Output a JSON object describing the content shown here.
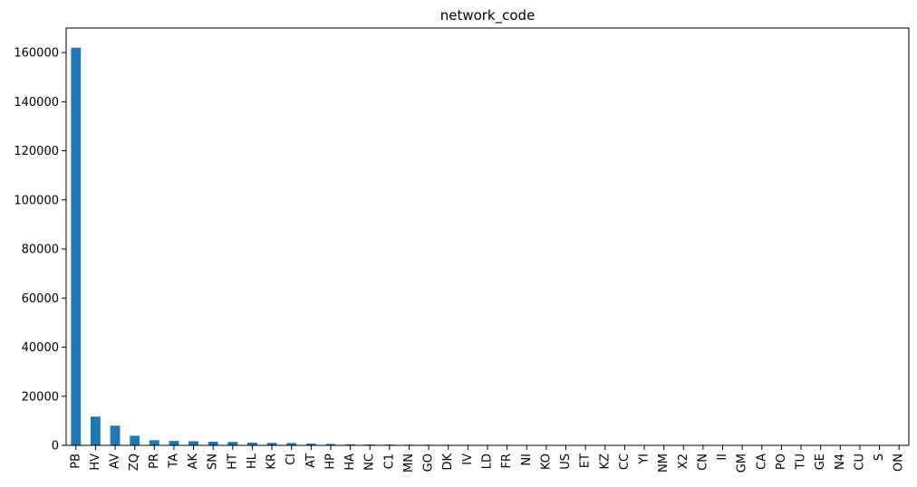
{
  "chart_data": {
    "type": "bar",
    "title": "network_code",
    "xlabel": "",
    "ylabel": "",
    "categories": [
      "PB",
      "HV",
      "AV",
      "ZQ",
      "PR",
      "TA",
      "AK",
      "SN",
      "HT",
      "HL",
      "KR",
      "CI",
      "AT",
      "HP",
      "HA",
      "NC",
      "C1",
      "MN",
      "GO",
      "DK",
      "IV",
      "LD",
      "FR",
      "NI",
      "KO",
      "US",
      "ET",
      "KZ",
      "CC",
      "YI",
      "NM",
      "X2",
      "CN",
      "II",
      "GM",
      "CA",
      "PO",
      "TU",
      "GE",
      "N4",
      "CU",
      "S",
      "ON"
    ],
    "values": [
      162000,
      11700,
      8000,
      3900,
      2100,
      1800,
      1700,
      1500,
      1400,
      1100,
      1000,
      950,
      700,
      600,
      450,
      350,
      300,
      280,
      260,
      240,
      220,
      200,
      190,
      180,
      170,
      160,
      150,
      140,
      130,
      120,
      110,
      100,
      90,
      80,
      75,
      70,
      60,
      30,
      20,
      15,
      10,
      5,
      3
    ],
    "ylim": [
      0,
      170000
    ],
    "yticks": [
      0,
      20000,
      40000,
      60000,
      80000,
      100000,
      120000,
      140000,
      160000
    ],
    "grid": false,
    "legend": "none",
    "bar_color": "#1f77b4"
  }
}
